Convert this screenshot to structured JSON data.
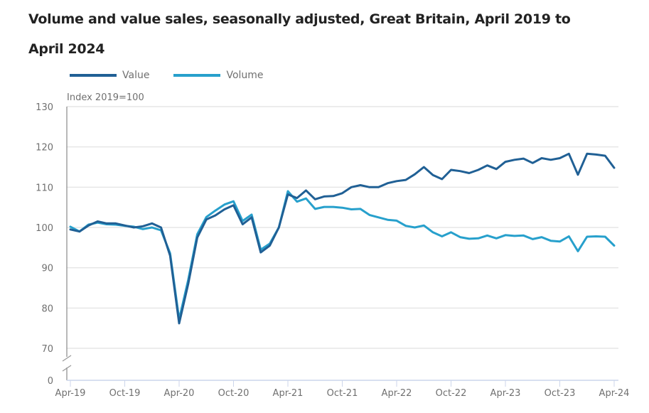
{
  "chart_data": {
    "type": "line",
    "title": "Volume and value sales, seasonally adjusted, Great Britain, April 2019 to April 2024",
    "ylabel": "Index 2019=100",
    "xlabel": "",
    "ylim": [
      70,
      130
    ],
    "y_break": true,
    "y_ticks": [
      0,
      70,
      80,
      90,
      100,
      110,
      120,
      130
    ],
    "x_ticks": [
      {
        "label": "Apr-19",
        "index": 0
      },
      {
        "label": "Oct-19",
        "index": 6
      },
      {
        "label": "Apr-20",
        "index": 12
      },
      {
        "label": "Oct-20",
        "index": 18
      },
      {
        "label": "Apr-21",
        "index": 24
      },
      {
        "label": "Oct-21",
        "index": 30
      },
      {
        "label": "Apr-22",
        "index": 36
      },
      {
        "label": "Oct-22",
        "index": 42
      },
      {
        "label": "Apr-23",
        "index": 48
      },
      {
        "label": "Oct-23",
        "index": 54
      },
      {
        "label": "Apr-24",
        "index": 60
      }
    ],
    "grid": true,
    "legend_position": "top-left",
    "x_start": "Apr-19",
    "x_end": "Apr-24",
    "series": [
      {
        "name": "Value",
        "color": "#206095",
        "values": [
          99.5,
          99.0,
          100.5,
          101.5,
          101.0,
          101.0,
          100.5,
          100.0,
          100.3,
          101.0,
          100.0,
          93.0,
          76.2,
          86.0,
          97.5,
          102.0,
          103.0,
          104.5,
          105.5,
          100.8,
          102.5,
          93.8,
          95.5,
          100.0,
          108.2,
          107.3,
          109.2,
          107.0,
          107.7,
          107.8,
          108.5,
          110.0,
          110.5,
          110.0,
          110.0,
          111.0,
          111.5,
          111.8,
          113.2,
          115.0,
          113.0,
          112.0,
          114.3,
          114.0,
          113.5,
          114.3,
          115.4,
          114.5,
          116.3,
          116.8,
          117.1,
          116.0,
          117.2,
          116.8,
          117.2,
          118.3,
          113.1,
          118.3,
          118.1,
          117.8,
          114.8
        ]
      },
      {
        "name": "Volume",
        "color": "#27a0cc",
        "values": [
          100.2,
          99.0,
          100.7,
          101.2,
          100.8,
          100.7,
          100.4,
          100.2,
          99.6,
          100.0,
          99.3,
          93.6,
          77.2,
          87.0,
          98.3,
          102.6,
          104.2,
          105.7,
          106.5,
          101.6,
          103.2,
          94.5,
          96.0,
          100.0,
          109.0,
          106.4,
          107.2,
          104.6,
          105.1,
          105.1,
          104.9,
          104.5,
          104.6,
          103.1,
          102.5,
          101.9,
          101.7,
          100.4,
          100.0,
          100.5,
          98.8,
          97.8,
          98.8,
          97.6,
          97.2,
          97.3,
          98.0,
          97.3,
          98.1,
          97.9,
          98.0,
          97.1,
          97.6,
          96.7,
          96.5,
          97.8,
          94.1,
          97.7,
          97.8,
          97.7,
          95.5
        ]
      }
    ]
  },
  "title_line1": "Volume and value sales, seasonally adjusted, Great Britain, April 2019 to",
  "title_line2": "April 2024",
  "legend": [
    {
      "label": "Value",
      "color": "#206095"
    },
    {
      "label": "Volume",
      "color": "#27a0cc"
    }
  ],
  "units_label": "Index 2019=100"
}
